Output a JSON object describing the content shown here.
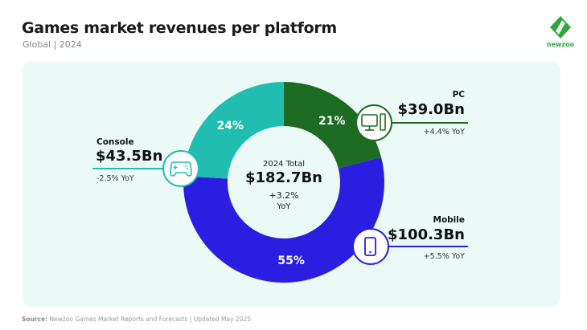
{
  "header": {
    "title": "Games market revenues per platform",
    "subtitle": "Global | 2024",
    "logo_text": "newzoo"
  },
  "footer": {
    "source_label": "Source:",
    "source_text": " Newzoo Games Market Reports and Forecasts | Updated May 2025"
  },
  "colors": {
    "pc": "#1e6b23",
    "mobile": "#2a1fe0",
    "console": "#20bdb0",
    "background": "#ebfaf6",
    "brand": "#2fa83a"
  },
  "chart_data": {
    "type": "pie",
    "donut": true,
    "title": "Games market revenues per platform",
    "subtitle": "Global | 2024",
    "center": {
      "label": "2024 Total",
      "value": "$182.7Bn",
      "change": "+3.2%",
      "change_unit": "YoY"
    },
    "slices": [
      {
        "name": "PC",
        "percent": 21,
        "percent_label": "21%",
        "revenue": "$39.0Bn",
        "yoy": "+4.4% YoY",
        "color": "#1e6b23",
        "icon": "desktop-computer-icon"
      },
      {
        "name": "Mobile",
        "percent": 55,
        "percent_label": "55%",
        "revenue": "$100.3Bn",
        "yoy": "+5.5% YoY",
        "color": "#2a1fe0",
        "icon": "smartphone-icon"
      },
      {
        "name": "Console",
        "percent": 24,
        "percent_label": "24%",
        "revenue": "$43.5Bn",
        "yoy": "-2.5% YoY",
        "color": "#20bdb0",
        "icon": "gamepad-icon"
      }
    ]
  }
}
